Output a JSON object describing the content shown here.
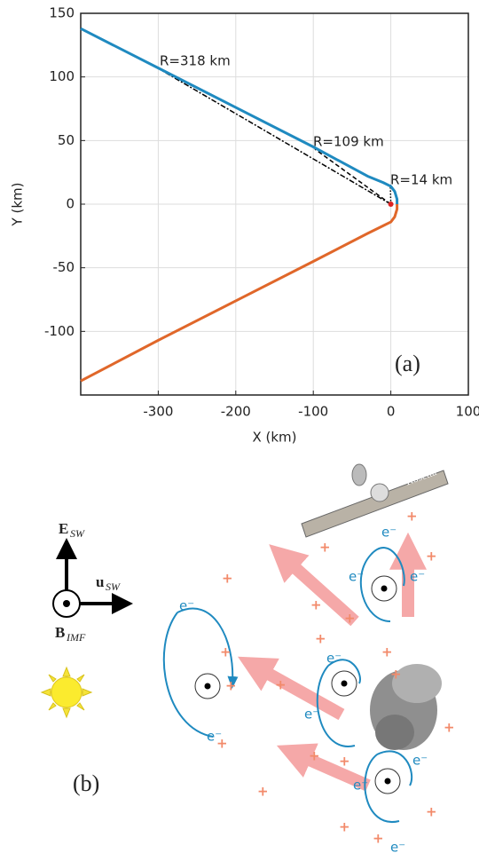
{
  "chart_data": {
    "type": "line",
    "xlabel": "X (km)",
    "ylabel": "Y (km)",
    "panel_label": "(a)",
    "xlim": [
      -400,
      100
    ],
    "ylim": [
      -150,
      150
    ],
    "xticks": [
      -300,
      -200,
      -100,
      0,
      100
    ],
    "yticks": [
      -100,
      -50,
      0,
      50,
      100,
      150
    ],
    "grid": true,
    "series": [
      {
        "color": "#1f8ac0",
        "x": [
          -400,
          -300,
          -200,
          -100,
          -30,
          -10,
          0,
          5,
          8,
          8
        ],
        "values": [
          138,
          107,
          76,
          45,
          22,
          17,
          14,
          10,
          4,
          0
        ]
      },
      {
        "color": "#e0672a",
        "x": [
          8,
          8,
          5,
          0,
          -10,
          -30,
          -100,
          -200,
          -300,
          -400
        ],
        "values": [
          0,
          -4,
          -10,
          -14,
          -17,
          -23,
          -45,
          -76,
          -107,
          -139
        ]
      }
    ],
    "annotations": [
      "R=318 km",
      "R=109 km",
      "R=14 km"
    ]
  },
  "diagram": {
    "panel_label": "(b)",
    "spacecraft": "Rosetta",
    "electron": "e⁻",
    "vectors": [
      {
        "symbol": "E",
        "subscript": "SW"
      },
      {
        "symbol": "u",
        "subscript": "SW"
      },
      {
        "symbol": "B",
        "subscript": "IMF"
      }
    ]
  }
}
